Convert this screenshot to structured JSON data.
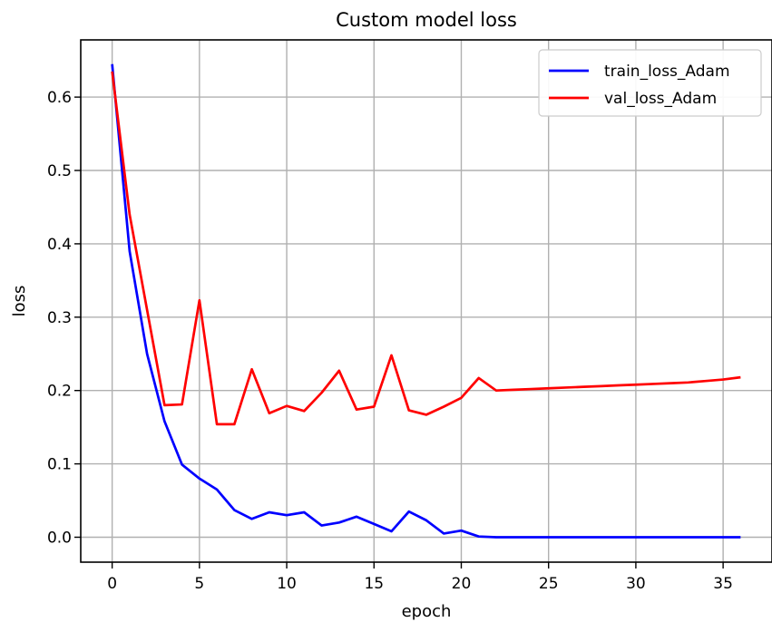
{
  "chart_data": {
    "type": "line",
    "title": "Custom model loss",
    "xlabel": "epoch",
    "ylabel": "loss",
    "xlim": [
      -1.8,
      37.8
    ],
    "ylim": [
      -0.034,
      0.678
    ],
    "x_ticks": [
      0,
      5,
      10,
      15,
      20,
      25,
      30,
      35
    ],
    "y_ticks": [
      0.0,
      0.1,
      0.2,
      0.3,
      0.4,
      0.5,
      0.6
    ],
    "x_tick_labels": [
      "0",
      "5",
      "10",
      "15",
      "20",
      "25",
      "30",
      "35"
    ],
    "y_tick_labels": [
      "0.0",
      "0.1",
      "0.2",
      "0.3",
      "0.4",
      "0.5",
      "0.6"
    ],
    "grid": true,
    "legend_position": "top-right",
    "series": [
      {
        "name": "train_loss_Adam",
        "color": "#0000ff",
        "x": [
          0,
          1,
          2,
          3,
          4,
          5,
          6,
          7,
          8,
          9,
          10,
          11,
          12,
          13,
          14,
          15,
          16,
          17,
          18,
          19,
          20,
          21,
          22,
          23,
          24,
          25,
          26,
          27,
          28,
          29,
          30,
          31,
          32,
          33,
          34,
          35,
          36
        ],
        "values": [
          0.645,
          0.39,
          0.25,
          0.158,
          0.099,
          0.08,
          0.065,
          0.037,
          0.025,
          0.034,
          0.03,
          0.034,
          0.016,
          0.02,
          0.028,
          0.018,
          0.008,
          0.035,
          0.023,
          0.005,
          0.009,
          0.001,
          0.0,
          0.0,
          0.0,
          0.0,
          0.0,
          0.0,
          0.0,
          0.0,
          0.0,
          0.0,
          0.0,
          0.0,
          0.0,
          0.0,
          0.0
        ]
      },
      {
        "name": "val_loss_Adam",
        "color": "#ff0000",
        "x": [
          0,
          1,
          2,
          3,
          4,
          5,
          6,
          7,
          8,
          9,
          10,
          11,
          12,
          13,
          14,
          15,
          16,
          17,
          18,
          19,
          20,
          21,
          22,
          23,
          24,
          25,
          26,
          27,
          28,
          29,
          30,
          31,
          32,
          33,
          34,
          35,
          36
        ],
        "values": [
          0.635,
          0.44,
          0.31,
          0.18,
          0.181,
          0.323,
          0.154,
          0.154,
          0.229,
          0.169,
          0.179,
          0.172,
          0.197,
          0.227,
          0.174,
          0.178,
          0.248,
          0.173,
          0.167,
          0.178,
          0.19,
          0.217,
          0.2,
          0.201,
          0.202,
          0.203,
          0.204,
          0.205,
          0.206,
          0.207,
          0.208,
          0.209,
          0.21,
          0.211,
          0.213,
          0.215,
          0.218
        ]
      }
    ]
  }
}
